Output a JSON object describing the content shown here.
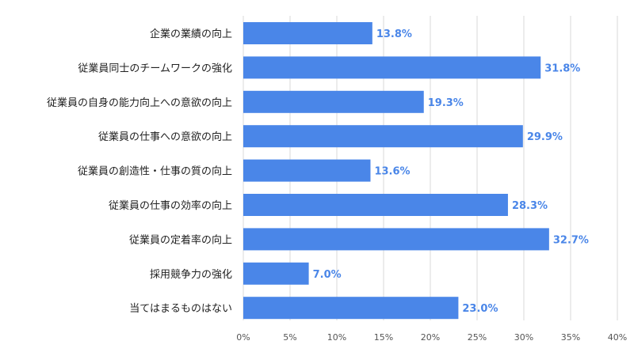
{
  "chart_data": {
    "type": "bar",
    "orientation": "horizontal",
    "categories": [
      "企業の業績の向上",
      "従業員同士のチームワークの強化",
      "従業員の自身の能力向上への意欲の向上",
      "従業員の仕事への意欲の向上",
      "従業員の創造性・仕事の質の向上",
      "従業員の仕事の効率の向上",
      "従業員の定着率の向上",
      "採用競争力の強化",
      "当てはまるものはない"
    ],
    "values": [
      13.8,
      31.8,
      19.3,
      29.9,
      13.6,
      28.3,
      32.7,
      7.0,
      23.0
    ],
    "value_labels": [
      "13.8%",
      "31.8%",
      "19.3%",
      "29.9%",
      "13.6%",
      "28.3%",
      "32.7%",
      "7.0%",
      "23.0%"
    ],
    "xlim": [
      0,
      40
    ],
    "x_ticks": [
      0,
      5,
      10,
      15,
      20,
      25,
      30,
      35,
      40
    ],
    "x_tick_labels": [
      "0%",
      "5%",
      "10%",
      "15%",
      "20%",
      "25%",
      "30%",
      "35%",
      "40%"
    ],
    "grid": true,
    "bar_color": "#4a86e8",
    "label_color": "#4a86e8"
  }
}
